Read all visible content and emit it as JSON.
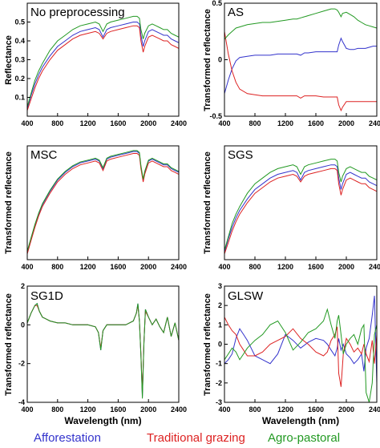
{
  "legend": {
    "afforestation": "Afforestation",
    "traditional": "Traditional grazing",
    "agro": "Agro-pastoral"
  },
  "colors": {
    "afforestation": "#3333cc",
    "traditional": "#dd2222",
    "agro": "#229922"
  },
  "chart_data": [
    {
      "type": "line",
      "panel_label": "No preprocessing",
      "ylabel": "Reflectance",
      "xlabel": "",
      "xlim": [
        400,
        2400
      ],
      "ylim": [
        0,
        0.6
      ],
      "xticks": [
        400,
        800,
        1200,
        1600,
        2000,
        2400
      ],
      "yticks": [
        0.1,
        0.2,
        0.3,
        0.4,
        0.5
      ],
      "x": [
        400,
        450,
        500,
        550,
        600,
        700,
        800,
        900,
        1000,
        1100,
        1200,
        1300,
        1350,
        1400,
        1450,
        1500,
        1600,
        1700,
        1800,
        1850,
        1880,
        1900,
        1930,
        1950,
        2000,
        2050,
        2100,
        2150,
        2200,
        2250,
        2300,
        2350,
        2400
      ],
      "series": [
        {
          "name": "Afforestation",
          "values": [
            0.04,
            0.11,
            0.17,
            0.22,
            0.26,
            0.32,
            0.37,
            0.4,
            0.43,
            0.45,
            0.46,
            0.47,
            0.46,
            0.42,
            0.46,
            0.47,
            0.48,
            0.49,
            0.5,
            0.5,
            0.49,
            0.43,
            0.37,
            0.4,
            0.45,
            0.46,
            0.45,
            0.44,
            0.43,
            0.43,
            0.41,
            0.4,
            0.39
          ]
        },
        {
          "name": "Traditional grazing",
          "values": [
            0.03,
            0.09,
            0.15,
            0.2,
            0.24,
            0.3,
            0.35,
            0.38,
            0.41,
            0.43,
            0.44,
            0.45,
            0.44,
            0.41,
            0.44,
            0.45,
            0.46,
            0.47,
            0.48,
            0.48,
            0.47,
            0.4,
            0.34,
            0.37,
            0.42,
            0.43,
            0.42,
            0.41,
            0.4,
            0.4,
            0.38,
            0.37,
            0.36
          ]
        },
        {
          "name": "Agro-pastoral",
          "values": [
            0.05,
            0.12,
            0.19,
            0.24,
            0.28,
            0.35,
            0.4,
            0.43,
            0.46,
            0.48,
            0.49,
            0.5,
            0.49,
            0.45,
            0.49,
            0.5,
            0.51,
            0.52,
            0.53,
            0.53,
            0.52,
            0.46,
            0.41,
            0.44,
            0.48,
            0.49,
            0.48,
            0.47,
            0.46,
            0.46,
            0.44,
            0.43,
            0.42
          ]
        }
      ]
    },
    {
      "type": "line",
      "panel_label": "AS",
      "ylabel": "Transformed reflectance",
      "xlabel": "",
      "xlim": [
        400,
        2400
      ],
      "ylim": [
        -0.5,
        0.5
      ],
      "xticks": [
        400,
        800,
        1200,
        1600,
        2000,
        2400
      ],
      "yticks": [
        -0.5,
        0,
        0.5
      ],
      "x": [
        400,
        450,
        500,
        550,
        600,
        700,
        800,
        900,
        1000,
        1100,
        1200,
        1300,
        1350,
        1400,
        1450,
        1500,
        1600,
        1700,
        1800,
        1850,
        1880,
        1900,
        1930,
        1950,
        2000,
        2050,
        2100,
        2150,
        2200,
        2250,
        2300,
        2350,
        2400
      ],
      "series": [
        {
          "name": "Afforestation",
          "values": [
            -0.3,
            -0.18,
            -0.08,
            -0.01,
            0.02,
            0.03,
            0.04,
            0.04,
            0.04,
            0.05,
            0.05,
            0.05,
            0.05,
            0.04,
            0.06,
            0.06,
            0.07,
            0.07,
            0.07,
            0.07,
            0.07,
            0.13,
            0.19,
            0.16,
            0.1,
            0.09,
            0.09,
            0.1,
            0.1,
            0.1,
            0.11,
            0.12,
            0.12
          ]
        },
        {
          "name": "Traditional grazing",
          "values": [
            0.25,
            0.05,
            -0.1,
            -0.2,
            -0.26,
            -0.3,
            -0.31,
            -0.32,
            -0.32,
            -0.32,
            -0.32,
            -0.32,
            -0.32,
            -0.34,
            -0.32,
            -0.32,
            -0.32,
            -0.33,
            -0.33,
            -0.33,
            -0.33,
            -0.4,
            -0.45,
            -0.42,
            -0.37,
            -0.37,
            -0.37,
            -0.37,
            -0.37,
            -0.37,
            -0.37,
            -0.37,
            -0.37
          ]
        },
        {
          "name": "Agro-pastoral",
          "values": [
            0.18,
            0.22,
            0.25,
            0.28,
            0.29,
            0.31,
            0.32,
            0.33,
            0.33,
            0.34,
            0.35,
            0.36,
            0.36,
            0.37,
            0.38,
            0.39,
            0.41,
            0.43,
            0.45,
            0.45,
            0.44,
            0.42,
            0.38,
            0.41,
            0.42,
            0.4,
            0.38,
            0.35,
            0.33,
            0.31,
            0.3,
            0.29,
            0.28
          ]
        }
      ]
    },
    {
      "type": "line",
      "panel_label": "MSC",
      "ylabel": "Transformed reflectance",
      "xlabel": "",
      "xlim": [
        400,
        2400
      ],
      "ylim": [
        0,
        0.6
      ],
      "xticks": [
        400,
        800,
        1200,
        1600,
        2000,
        2400
      ],
      "yticks": [],
      "x": [
        400,
        450,
        500,
        550,
        600,
        700,
        800,
        900,
        1000,
        1100,
        1200,
        1300,
        1350,
        1400,
        1450,
        1500,
        1600,
        1700,
        1800,
        1850,
        1880,
        1900,
        1930,
        1950,
        2000,
        2050,
        2100,
        2150,
        2200,
        2250,
        2300,
        2350,
        2400
      ],
      "series": [
        {
          "name": "Afforestation",
          "values": [
            0.04,
            0.11,
            0.18,
            0.24,
            0.29,
            0.36,
            0.42,
            0.46,
            0.49,
            0.51,
            0.52,
            0.53,
            0.52,
            0.48,
            0.53,
            0.54,
            0.55,
            0.56,
            0.57,
            0.57,
            0.56,
            0.49,
            0.42,
            0.46,
            0.52,
            0.53,
            0.52,
            0.51,
            0.5,
            0.5,
            0.48,
            0.47,
            0.46
          ]
        },
        {
          "name": "Traditional grazing",
          "values": [
            0.03,
            0.1,
            0.17,
            0.23,
            0.28,
            0.35,
            0.41,
            0.45,
            0.48,
            0.5,
            0.51,
            0.52,
            0.51,
            0.47,
            0.52,
            0.53,
            0.54,
            0.55,
            0.56,
            0.56,
            0.55,
            0.48,
            0.41,
            0.45,
            0.51,
            0.52,
            0.51,
            0.5,
            0.49,
            0.49,
            0.47,
            0.46,
            0.45
          ]
        },
        {
          "name": "Agro-pastoral",
          "values": [
            0.045,
            0.115,
            0.185,
            0.245,
            0.295,
            0.365,
            0.425,
            0.465,
            0.495,
            0.515,
            0.525,
            0.535,
            0.525,
            0.485,
            0.535,
            0.545,
            0.555,
            0.565,
            0.575,
            0.575,
            0.565,
            0.495,
            0.425,
            0.465,
            0.525,
            0.535,
            0.525,
            0.515,
            0.505,
            0.505,
            0.485,
            0.475,
            0.465
          ]
        }
      ]
    },
    {
      "type": "line",
      "panel_label": "SGS",
      "ylabel": "Transformed reflectance",
      "xlabel": "",
      "xlim": [
        400,
        2400
      ],
      "ylim": [
        0,
        0.6
      ],
      "xticks": [
        400,
        800,
        1200,
        1600,
        2000,
        2400
      ],
      "yticks": [],
      "x": [
        400,
        450,
        500,
        550,
        600,
        700,
        800,
        900,
        1000,
        1100,
        1200,
        1300,
        1350,
        1400,
        1450,
        1500,
        1600,
        1700,
        1800,
        1850,
        1880,
        1900,
        1930,
        1950,
        2000,
        2050,
        2100,
        2150,
        2200,
        2250,
        2300,
        2350,
        2400
      ],
      "series": [
        {
          "name": "Afforestation",
          "values": [
            0.04,
            0.11,
            0.17,
            0.22,
            0.26,
            0.32,
            0.37,
            0.4,
            0.43,
            0.45,
            0.46,
            0.47,
            0.46,
            0.42,
            0.46,
            0.47,
            0.48,
            0.49,
            0.5,
            0.5,
            0.49,
            0.43,
            0.37,
            0.4,
            0.45,
            0.46,
            0.45,
            0.44,
            0.43,
            0.43,
            0.41,
            0.4,
            0.39
          ]
        },
        {
          "name": "Traditional grazing",
          "values": [
            0.03,
            0.09,
            0.15,
            0.2,
            0.24,
            0.3,
            0.35,
            0.38,
            0.41,
            0.43,
            0.44,
            0.45,
            0.44,
            0.41,
            0.44,
            0.45,
            0.46,
            0.47,
            0.48,
            0.48,
            0.47,
            0.4,
            0.34,
            0.37,
            0.42,
            0.43,
            0.42,
            0.41,
            0.4,
            0.4,
            0.38,
            0.37,
            0.36
          ]
        },
        {
          "name": "Agro-pastoral",
          "values": [
            0.05,
            0.12,
            0.19,
            0.24,
            0.28,
            0.35,
            0.4,
            0.43,
            0.46,
            0.48,
            0.49,
            0.5,
            0.49,
            0.45,
            0.49,
            0.5,
            0.51,
            0.52,
            0.53,
            0.53,
            0.52,
            0.46,
            0.41,
            0.44,
            0.48,
            0.49,
            0.48,
            0.47,
            0.46,
            0.46,
            0.44,
            0.43,
            0.42
          ]
        }
      ]
    },
    {
      "type": "line",
      "panel_label": "SG1D",
      "ylabel": "Transformed reflectance",
      "xlabel": "Wavelength (nm)",
      "xlim": [
        400,
        2400
      ],
      "ylim": [
        -4,
        2
      ],
      "xticks": [
        400,
        800,
        1200,
        1600,
        2000,
        2400
      ],
      "yticks": [
        -4,
        -2,
        0,
        2
      ],
      "x": [
        400,
        450,
        500,
        530,
        560,
        600,
        650,
        700,
        800,
        900,
        1000,
        1100,
        1200,
        1300,
        1340,
        1370,
        1400,
        1450,
        1500,
        1600,
        1700,
        1800,
        1840,
        1860,
        1880,
        1900,
        1920,
        1940,
        1960,
        2000,
        2050,
        2100,
        2150,
        2200,
        2250,
        2300,
        2350,
        2400
      ],
      "series": [
        {
          "name": "Afforestation",
          "values": [
            0.1,
            0.6,
            1.0,
            1.1,
            0.7,
            0.4,
            0.3,
            0.2,
            0.1,
            0.1,
            0.0,
            0.0,
            0.0,
            -0.1,
            -0.4,
            -1.3,
            -0.3,
            0.0,
            0.0,
            0.0,
            0.0,
            0.2,
            0.6,
            1.1,
            0.2,
            -1.6,
            -3.7,
            -1.0,
            0.8,
            0.4,
            0.0,
            0.3,
            -0.1,
            -0.4,
            0.4,
            -0.6,
            0.1,
            -0.8
          ]
        },
        {
          "name": "Traditional grazing",
          "values": [
            0.1,
            0.6,
            1.0,
            1.0,
            0.7,
            0.4,
            0.3,
            0.2,
            0.1,
            0.1,
            0.0,
            0.0,
            0.0,
            -0.1,
            -0.4,
            -1.2,
            -0.3,
            0.0,
            0.0,
            0.0,
            0.0,
            0.2,
            0.6,
            1.0,
            0.2,
            -1.5,
            -3.5,
            -0.9,
            0.7,
            0.4,
            0.0,
            0.3,
            -0.1,
            -0.4,
            0.4,
            -0.6,
            0.1,
            -0.8
          ]
        },
        {
          "name": "Agro-pastoral",
          "values": [
            0.1,
            0.6,
            1.0,
            1.1,
            0.7,
            0.4,
            0.3,
            0.2,
            0.1,
            0.1,
            0.0,
            0.0,
            0.0,
            -0.1,
            -0.4,
            -1.3,
            -0.3,
            0.0,
            0.0,
            0.0,
            0.0,
            0.2,
            0.6,
            1.1,
            0.2,
            -1.6,
            -3.8,
            -1.0,
            0.8,
            0.4,
            0.0,
            0.3,
            -0.1,
            -0.4,
            0.4,
            -0.6,
            0.1,
            -0.8
          ]
        }
      ]
    },
    {
      "type": "line",
      "panel_label": "GLSW",
      "ylabel": "Transformed reflectance",
      "xlabel": "Wavelength (nm)",
      "xlim": [
        400,
        2400
      ],
      "ylim": [
        -3,
        3
      ],
      "xticks": [
        400,
        800,
        1200,
        1600,
        2000,
        2400
      ],
      "yticks": [
        -3,
        -2,
        -1,
        0,
        1,
        2,
        3
      ],
      "x": [
        400,
        450,
        500,
        550,
        600,
        650,
        700,
        800,
        900,
        1000,
        1100,
        1200,
        1300,
        1400,
        1500,
        1600,
        1700,
        1750,
        1800,
        1850,
        1880,
        1900,
        1930,
        1960,
        2000,
        2050,
        2100,
        2150,
        2200,
        2230,
        2260,
        2300,
        2340,
        2370,
        2400
      ],
      "series": [
        {
          "name": "Afforestation",
          "values": [
            -1.0,
            -0.8,
            -0.5,
            0.3,
            0.8,
            0.5,
            0.2,
            -0.6,
            -0.8,
            -1.0,
            -0.5,
            0.5,
            0.2,
            -0.2,
            0.1,
            0.3,
            0.2,
            0.0,
            -0.3,
            -0.6,
            -0.2,
            0.3,
            -0.3,
            0.0,
            -0.5,
            -0.7,
            -1.0,
            -0.8,
            -0.5,
            -1.4,
            -0.2,
            0.3,
            1.5,
            2.5,
            -2.0
          ]
        },
        {
          "name": "Traditional grazing",
          "values": [
            1.4,
            1.0,
            0.7,
            0.5,
            0.0,
            -0.3,
            -0.6,
            -0.6,
            -0.4,
            0.0,
            0.2,
            0.4,
            0.8,
            0.3,
            0.0,
            -0.4,
            -0.6,
            -0.4,
            0.2,
            0.5,
            0.9,
            -1.5,
            -2.2,
            -0.5,
            0.3,
            0.0,
            -0.4,
            -0.2,
            -0.5,
            0.0,
            -0.5,
            -0.9,
            0.2,
            -1.0,
            0.5
          ]
        },
        {
          "name": "Agro-pastoral",
          "values": [
            -0.8,
            -0.5,
            -0.2,
            -0.4,
            -0.8,
            -0.5,
            -0.2,
            0.2,
            0.5,
            1.0,
            1.2,
            0.6,
            -0.3,
            0.1,
            0.6,
            0.8,
            1.2,
            1.8,
            1.0,
            0.3,
            1.2,
            1.5,
            0.5,
            -0.5,
            0.0,
            0.3,
            0.5,
            0.0,
            0.8,
            1.0,
            -2.5,
            -3.0,
            -2.0,
            0.5,
            1.0
          ]
        }
      ]
    }
  ]
}
